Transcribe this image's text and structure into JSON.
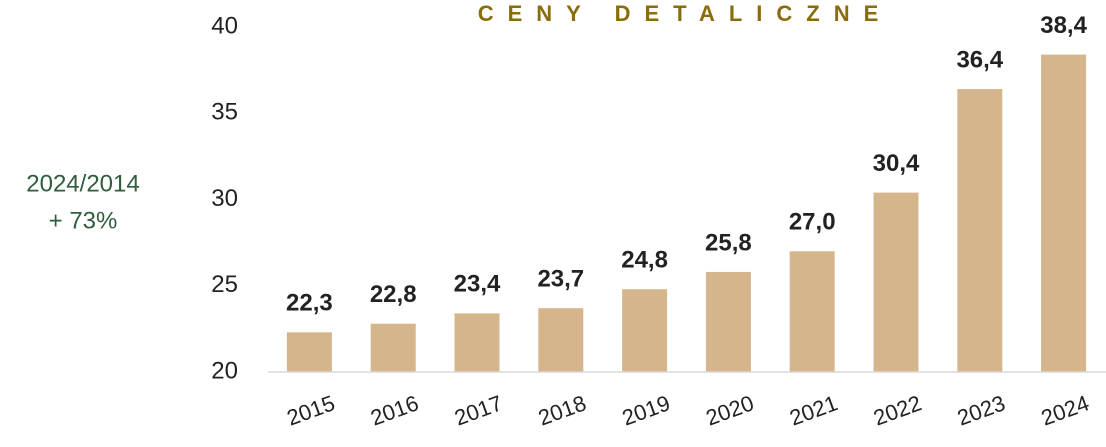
{
  "chart_data": {
    "type": "bar",
    "title": "CENY DETALICZNE",
    "annotations": [
      "2024/2014",
      "+ 73%"
    ],
    "categories": [
      "2015",
      "2016",
      "2017",
      "2018",
      "2019",
      "2020",
      "2021",
      "2022",
      "2023",
      "2024"
    ],
    "values": [
      22.3,
      22.8,
      23.4,
      23.7,
      24.8,
      25.8,
      27.0,
      30.4,
      36.4,
      38.4
    ],
    "value_labels": [
      "22,3",
      "22,8",
      "23,4",
      "23,7",
      "24,8",
      "25,8",
      "27,0",
      "30,4",
      "36,4",
      "38,4"
    ],
    "color": "#d5b68c",
    "ylim": [
      20,
      40
    ],
    "yticks": [
      20,
      25,
      30,
      35,
      40
    ],
    "grid": false
  }
}
